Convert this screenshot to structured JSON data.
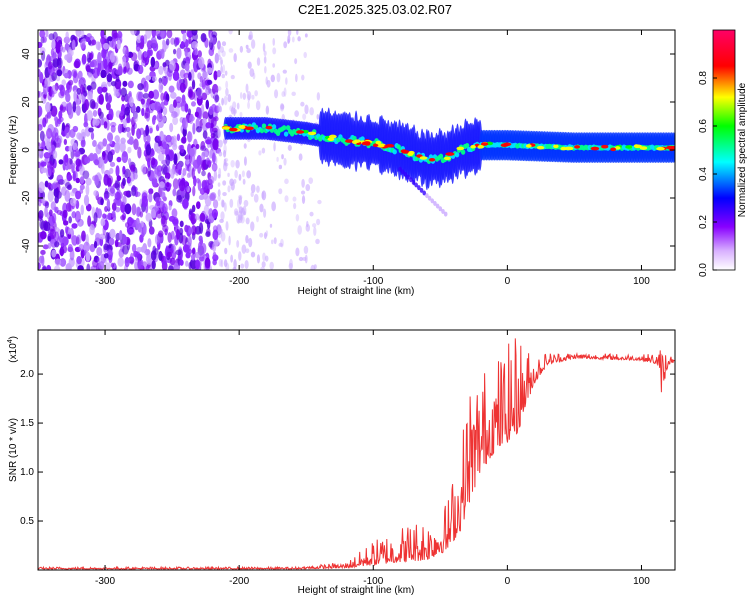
{
  "title": "C2E1.2025.325.03.02.R07",
  "chart_data": [
    {
      "type": "heatmap",
      "panel": "top",
      "xlabel": "Height of straight line (km)",
      "ylabel": "Frequency (Hz)",
      "xlim": [
        -350,
        125
      ],
      "ylim": [
        -50,
        50
      ],
      "xticks": [
        -300,
        -200,
        -100,
        0,
        100
      ],
      "yticks": [
        -40,
        -20,
        0,
        20,
        40
      ],
      "colorbar": {
        "label": "Normalized spectral amplitude",
        "range": [
          0.0,
          1.0
        ],
        "ticks": [
          "0.0",
          "0.2",
          "0.4",
          "0.6",
          "0.8"
        ],
        "colors": [
          "#ffffff",
          "#8800ff",
          "#0000ff",
          "#00ffff",
          "#00ff00",
          "#ffff00",
          "#ff0000",
          "#ff0066"
        ]
      },
      "signal_trace": {
        "description_points_km_hz": [
          [
            -210,
            9
          ],
          [
            -180,
            9
          ],
          [
            -150,
            7
          ],
          [
            -120,
            4
          ],
          [
            -100,
            3
          ],
          [
            -80,
            0
          ],
          [
            -60,
            -4
          ],
          [
            -45,
            -3
          ],
          [
            -35,
            0
          ],
          [
            -20,
            2
          ],
          [
            0,
            2
          ],
          [
            50,
            1
          ],
          [
            125,
            1
          ]
        ],
        "noise_region_km": [
          -350,
          -215
        ],
        "faint_noise_region_km": [
          -215,
          -140
        ]
      }
    },
    {
      "type": "line",
      "panel": "bottom",
      "xlabel": "Height of straight line (km)",
      "ylabel": "SNR (10 * v/v)",
      "scale_label": "(x10",
      "scale_exp": "4",
      "scale_close": ")",
      "xlim": [
        -350,
        125
      ],
      "ylim": [
        0,
        2.45
      ],
      "xticks": [
        -300,
        -200,
        -100,
        0,
        100
      ],
      "yticks": [
        "0.5",
        "1.0",
        "1.5",
        "2.0"
      ],
      "series": [
        {
          "name": "SNR",
          "color": "#ee3333",
          "envelope_x": [
            -350,
            -160,
            -120,
            -100,
            -80,
            -60,
            -45,
            -35,
            -28,
            -20,
            -10,
            0,
            8,
            12,
            20,
            30,
            50,
            100,
            112,
            115,
            120,
            125
          ],
          "envelope_lo": [
            0.01,
            0.01,
            0.02,
            0.05,
            0.08,
            0.1,
            0.2,
            0.4,
            0.7,
            1.0,
            1.2,
            1.3,
            1.4,
            1.6,
            1.9,
            2.1,
            2.16,
            2.14,
            2.1,
            1.8,
            2.1,
            2.12
          ],
          "envelope_hi": [
            0.03,
            0.03,
            0.08,
            0.3,
            0.45,
            0.55,
            0.7,
            1.3,
            1.95,
            2.05,
            2.15,
            2.3,
            2.45,
            2.3,
            2.2,
            2.22,
            2.22,
            2.2,
            2.22,
            2.3,
            2.22,
            2.15
          ]
        }
      ]
    }
  ]
}
